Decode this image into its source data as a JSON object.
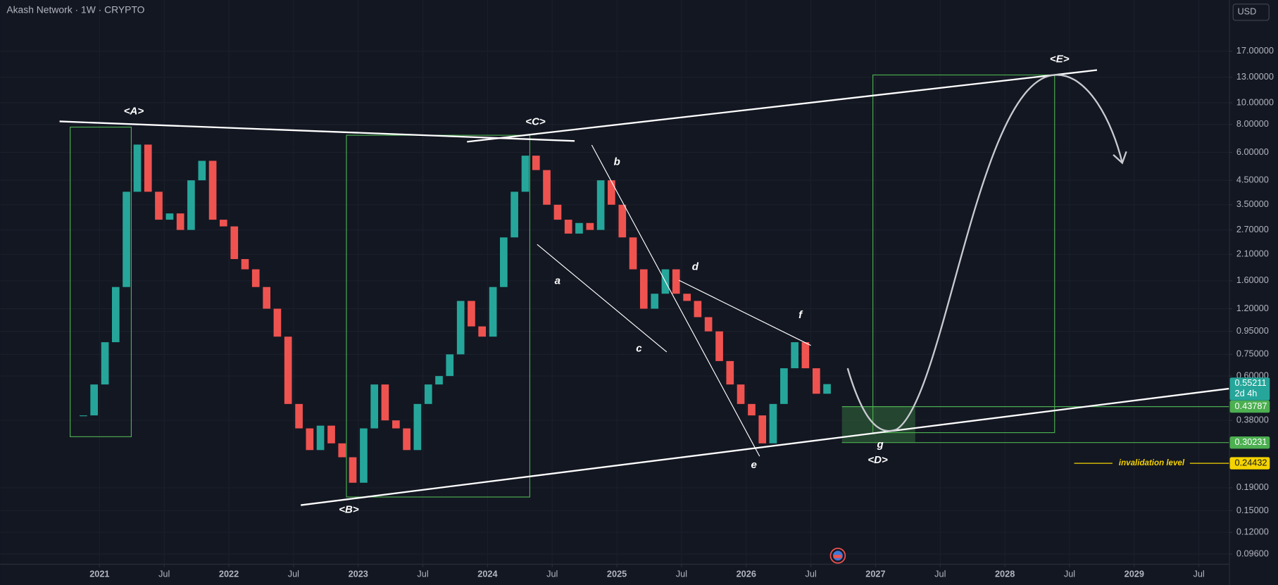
{
  "header": {
    "title": "Akash Network · 1W · CRYPTO",
    "currency": "USD"
  },
  "chart_data": {
    "type": "candlestick",
    "x": [
      2020.875,
      2020.958,
      2021.042,
      2021.125,
      2021.208,
      2021.292,
      2021.375,
      2021.458,
      2021.542,
      2021.625,
      2021.708,
      2021.792,
      2021.875,
      2021.958,
      2022.042,
      2022.125,
      2022.208,
      2022.292,
      2022.375,
      2022.458,
      2022.542,
      2022.625,
      2022.708,
      2022.792,
      2022.875,
      2022.958,
      2023.042,
      2023.125,
      2023.208,
      2023.292,
      2023.375,
      2023.458,
      2023.542,
      2023.625,
      2023.708,
      2023.792,
      2023.875,
      2023.958,
      2024.042,
      2024.125,
      2024.208,
      2024.292,
      2024.375,
      2024.458,
      2024.542,
      2024.625,
      2024.708,
      2024.792,
      2024.875,
      2024.958,
      2025.042,
      2025.125,
      2025.208,
      2025.292,
      2025.375,
      2025.458,
      2025.542,
      2025.625,
      2025.708,
      2025.792,
      2025.875,
      2025.958,
      2026.042,
      2026.125,
      2026.208,
      2026.292,
      2026.375,
      2026.458,
      2026.542,
      2026.625
    ],
    "values": [
      0.4,
      0.55,
      0.85,
      1.5,
      4.0,
      6.5,
      4.0,
      3.0,
      3.2,
      2.7,
      4.5,
      5.5,
      3.0,
      2.8,
      2.0,
      1.8,
      1.5,
      1.2,
      0.9,
      0.45,
      0.35,
      0.28,
      0.36,
      0.3,
      0.26,
      0.2,
      0.35,
      0.55,
      0.38,
      0.35,
      0.28,
      0.45,
      0.55,
      0.6,
      0.75,
      1.3,
      1.0,
      0.9,
      1.5,
      2.5,
      4.0,
      5.8,
      5.0,
      3.5,
      3.0,
      2.6,
      2.9,
      2.7,
      4.5,
      3.5,
      2.5,
      1.8,
      1.2,
      1.4,
      1.8,
      1.4,
      1.3,
      1.1,
      0.95,
      0.7,
      0.55,
      0.45,
      0.4,
      0.3,
      0.45,
      0.65,
      0.85,
      0.65,
      0.5,
      0.5521
    ],
    "up_color": "#26a69a",
    "down_color": "#ef5350",
    "log_scale": true,
    "grid": true,
    "ylim": [
      0.0868,
      28.8
    ],
    "yticks": [
      {
        "value": 17,
        "label": "17.00000"
      },
      {
        "value": 13,
        "label": "13.00000"
      },
      {
        "value": 10,
        "label": "10.00000"
      },
      {
        "value": 8,
        "label": "8.00000"
      },
      {
        "value": 6,
        "label": "6.00000"
      },
      {
        "value": 4.5,
        "label": "4.50000"
      },
      {
        "value": 3.5,
        "label": "3.50000"
      },
      {
        "value": 2.7,
        "label": "2.70000"
      },
      {
        "value": 2.1,
        "label": "2.10000"
      },
      {
        "value": 1.6,
        "label": "1.60000"
      },
      {
        "value": 1.2,
        "label": "1.20000"
      },
      {
        "value": 0.95,
        "label": "0.95000"
      },
      {
        "value": 0.75,
        "label": "0.75000"
      },
      {
        "value": 0.6,
        "label": "0.60000"
      },
      {
        "value": 0.38,
        "label": "0.38000"
      },
      {
        "value": 0.19,
        "label": "0.19000"
      },
      {
        "value": 0.15,
        "label": "0.15000"
      },
      {
        "value": 0.12,
        "label": "0.12000"
      },
      {
        "value": 0.096,
        "label": "0.09600"
      }
    ],
    "xlim": [
      2020.231,
      2029.733
    ],
    "xticks": [
      2021,
      {
        "value": 2021.5,
        "label": "Jul"
      },
      2022,
      {
        "value": 2022.5,
        "label": "Jul"
      },
      2023,
      {
        "value": 2023.5,
        "label": "Jul"
      },
      2024,
      {
        "value": 2024.5,
        "label": "Jul"
      },
      2025,
      {
        "value": 2025.5,
        "label": "Jul"
      },
      2026,
      {
        "value": 2026.5,
        "label": "Jul"
      },
      2027,
      {
        "value": 2027.5,
        "label": "Jul"
      },
      2028,
      {
        "value": 2028.5,
        "label": "Jul"
      },
      2029,
      {
        "value": 2029.5,
        "label": "Jul"
      }
    ],
    "annotations": [
      "<A>",
      "<B>",
      "<C>",
      "<D>",
      "<E>",
      "a",
      "b",
      "c",
      "d",
      "e",
      "f",
      "g"
    ],
    "last_price": {
      "value": 0.55211,
      "countdown": "2d 4h",
      "color": "#26a69a"
    },
    "levels": [
      {
        "value": 0.43787,
        "color": "#4caf50"
      },
      {
        "value": 0.30231,
        "color": "#4caf50"
      },
      {
        "value": 0.24432,
        "color": "#f5d300",
        "label": "invalidation level"
      }
    ]
  }
}
